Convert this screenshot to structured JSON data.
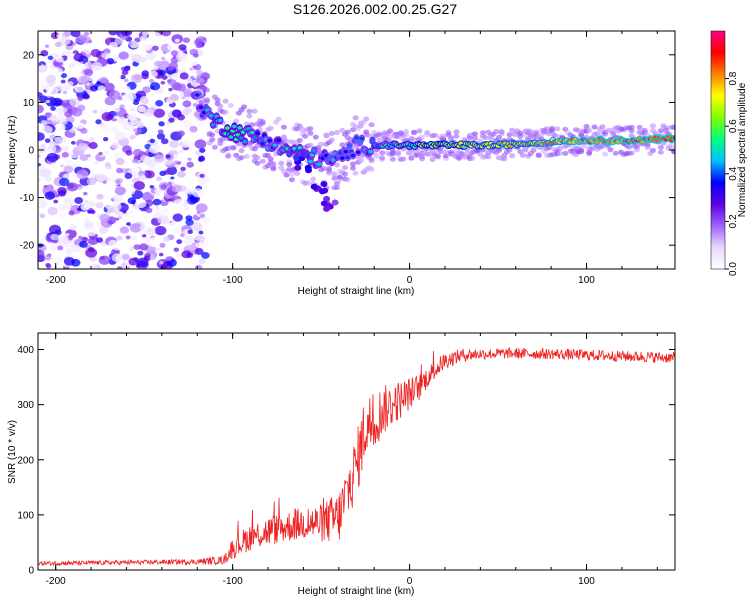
{
  "title": "S126.2026.002.00.25.G27",
  "chart_data": [
    {
      "type": "heatmap",
      "xlabel": "Height of straight line (km)",
      "ylabel": "Frequency (Hz)",
      "xlim": [
        -210,
        150
      ],
      "ylim": [
        -25,
        25
      ],
      "xticks": [
        -200,
        -100,
        0,
        100
      ],
      "xtick_labels": [
        "-200",
        "-100",
        "0",
        "100"
      ],
      "yticks": [
        -20,
        -10,
        0,
        10,
        20
      ],
      "ytick_labels": [
        "-20",
        "-10",
        "0",
        "10",
        "20"
      ],
      "colorbar": {
        "label": "Normalized spectral amplitude",
        "range": [
          0,
          1
        ],
        "ticks": [
          0.0,
          0.2,
          0.4,
          0.6,
          0.8
        ],
        "tick_labels": [
          "0.0",
          "0.2",
          "0.4",
          "0.6",
          "0.8"
        ],
        "colors": [
          "#ffffff",
          "#e8d8ff",
          "#a060ff",
          "#6000e0",
          "#0000ff",
          "#00c0ff",
          "#00ff80",
          "#80ff00",
          "#ffff00",
          "#ff8000",
          "#ff0000",
          "#ff0080"
        ]
      },
      "ridge": [
        {
          "x": -120,
          "y": 10,
          "amp": 0.35
        },
        {
          "x": -110,
          "y": 6,
          "amp": 0.45
        },
        {
          "x": -100,
          "y": 4,
          "amp": 0.5
        },
        {
          "x": -90,
          "y": 3,
          "amp": 0.45
        },
        {
          "x": -80,
          "y": 2,
          "amp": 0.4
        },
        {
          "x": -70,
          "y": 0,
          "amp": 0.45
        },
        {
          "x": -60,
          "y": -1,
          "amp": 0.45
        },
        {
          "x": -50,
          "y": -2,
          "amp": 0.4
        },
        {
          "x": -40,
          "y": -2,
          "amp": 0.4
        },
        {
          "x": -30,
          "y": 1,
          "amp": 0.35
        },
        {
          "x": -20,
          "y": 1,
          "amp": 0.45
        },
        {
          "x": -10,
          "y": 1,
          "amp": 0.5
        },
        {
          "x": 0,
          "y": 1,
          "amp": 0.55
        },
        {
          "x": 10,
          "y": 1,
          "amp": 0.65
        },
        {
          "x": 30,
          "y": 1,
          "amp": 0.7
        },
        {
          "x": 50,
          "y": 1,
          "amp": 0.72
        },
        {
          "x": 70,
          "y": 1.5,
          "amp": 0.75
        },
        {
          "x": 90,
          "y": 2,
          "amp": 0.8
        },
        {
          "x": 110,
          "y": 2,
          "amp": 0.85
        },
        {
          "x": 130,
          "y": 2,
          "amp": 0.85
        },
        {
          "x": 150,
          "y": 2.5,
          "amp": 0.9
        }
      ],
      "branch": [
        {
          "x": -60,
          "y": -3,
          "amp": 0.35
        },
        {
          "x": -50,
          "y": -8,
          "amp": 0.35
        },
        {
          "x": -45,
          "y": -11,
          "amp": 0.3
        }
      ]
    },
    {
      "type": "line",
      "xlabel": "Height of straight line (km)",
      "ylabel": "SNR (10 * v/v)",
      "xlim": [
        -210,
        150
      ],
      "ylim": [
        0,
        430
      ],
      "xticks": [
        -200,
        -100,
        0,
        100
      ],
      "xtick_labels": [
        "-200",
        "-100",
        "0",
        "100"
      ],
      "yticks": [
        0,
        100,
        200,
        300,
        400
      ],
      "ytick_labels": [
        "0",
        "100",
        "200",
        "300",
        "400"
      ],
      "series": [
        {
          "name": "SNR",
          "color": "#ee2222",
          "x": [
            -210,
            -180,
            -150,
            -120,
            -105,
            -100,
            -90,
            -80,
            -70,
            -60,
            -50,
            -40,
            -30,
            -25,
            -20,
            -15,
            -10,
            -5,
            0,
            5,
            10,
            20,
            30,
            40,
            60,
            80,
            100,
            120,
            150
          ],
          "y": [
            12,
            13,
            14,
            15,
            18,
            40,
            60,
            70,
            78,
            85,
            85,
            95,
            190,
            260,
            270,
            290,
            300,
            310,
            320,
            330,
            350,
            380,
            390,
            392,
            393,
            392,
            390,
            388,
            385
          ],
          "noise": [
            4,
            4,
            4,
            5,
            8,
            20,
            25,
            28,
            28,
            30,
            35,
            50,
            60,
            60,
            55,
            45,
            40,
            35,
            30,
            25,
            20,
            15,
            12,
            10,
            10,
            10,
            10,
            10,
            10
          ]
        }
      ]
    }
  ]
}
